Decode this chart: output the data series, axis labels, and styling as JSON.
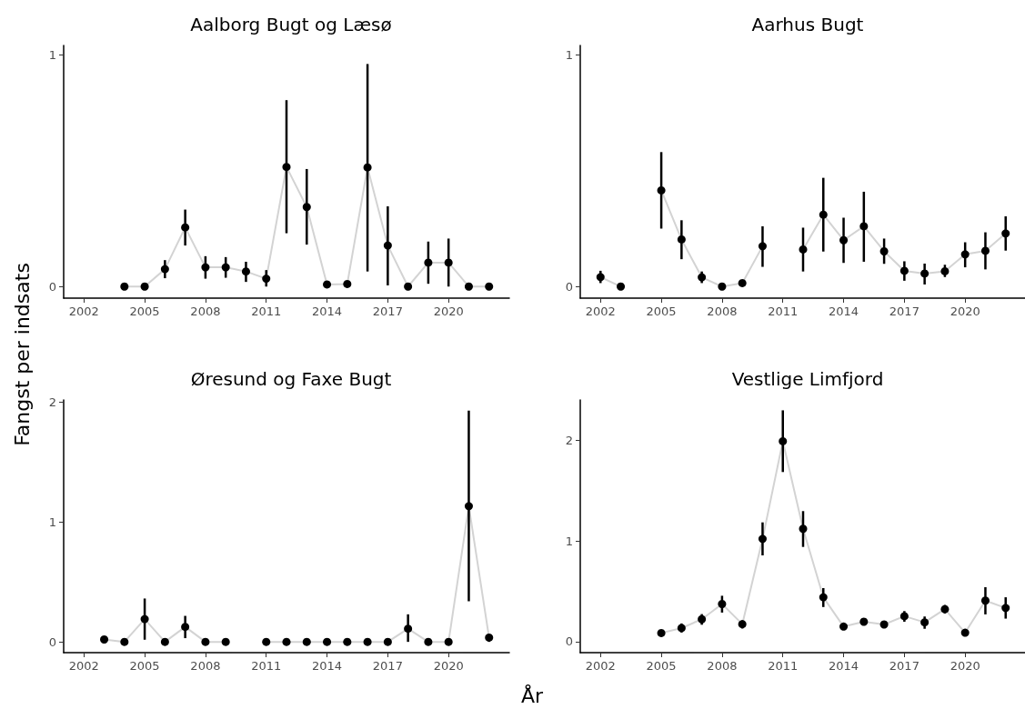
{
  "chart_data": [
    {
      "type": "line",
      "title": "Aalborg Bugt og Læsø",
      "ylabel": "Fangst per indsats",
      "xlim": [
        2001,
        2023
      ],
      "xticks": [
        2002,
        2005,
        2008,
        2011,
        2014,
        2017,
        2020
      ],
      "ylim": [
        -0.05,
        1.04
      ],
      "yticks": [
        0,
        1
      ],
      "series": [
        {
          "type": "line",
          "color": "#d3d3d3",
          "marker": "none",
          "x": [
            2004,
            2005,
            2006,
            2007,
            2008,
            2009,
            2010,
            2011,
            2012,
            2013,
            2014,
            2015,
            2016,
            2017,
            2018,
            2019,
            2020,
            2021,
            2022
          ],
          "values": [
            0,
            0,
            0.075,
            0.255,
            0.083,
            0.083,
            0.065,
            0.034,
            0.516,
            0.343,
            0.009,
            0.011,
            0.514,
            0.177,
            0,
            0.103,
            0.103,
            0,
            0
          ]
        },
        {
          "type": "scatter",
          "color": "#000000",
          "marker": "circle",
          "x": [
            2004,
            2005,
            2006,
            2007,
            2008,
            2009,
            2010,
            2011,
            2012,
            2013,
            2014,
            2015,
            2016,
            2017,
            2018,
            2019,
            2020,
            2021,
            2022
          ],
          "values": [
            0,
            0,
            0.075,
            0.255,
            0.083,
            0.083,
            0.065,
            0.034,
            0.516,
            0.343,
            0.009,
            0.011,
            0.514,
            0.177,
            0,
            0.103,
            0.103,
            0,
            0
          ],
          "errors": [
            null,
            null,
            [
              0.036,
              0.114
            ],
            [
              0.177,
              0.332
            ],
            [
              0.034,
              0.131
            ],
            [
              0.038,
              0.127
            ],
            [
              0.02,
              0.107
            ],
            [
              0,
              0.071
            ],
            [
              0.23,
              0.804
            ],
            [
              0.181,
              0.507
            ],
            null,
            null,
            [
              0.065,
              0.96
            ],
            [
              0.005,
              0.346
            ],
            null,
            [
              0.012,
              0.194
            ],
            [
              0,
              0.207
            ],
            null,
            null
          ]
        }
      ]
    },
    {
      "type": "line",
      "title": "Aarhus Bugt",
      "xlim": [
        2001,
        2023
      ],
      "xticks": [
        2002,
        2005,
        2008,
        2011,
        2014,
        2017,
        2020
      ],
      "ylim": [
        -0.05,
        1.04
      ],
      "yticks": [
        0,
        1
      ],
      "series": [
        {
          "type": "line",
          "color": "#d3d3d3",
          "marker": "none",
          "x": [
            2002,
            2003,
            2004,
            2005,
            2006,
            2007,
            2008,
            2009,
            2010,
            2011,
            2012,
            2013,
            2014,
            2015,
            2016,
            2017,
            2018,
            2019,
            2020,
            2021,
            2022
          ],
          "values": [
            0.041,
            0,
            null,
            0.415,
            0.203,
            0.04,
            0,
            0.015,
            0.174,
            null,
            0.16,
            0.31,
            0.2,
            0.26,
            0.152,
            0.068,
            0.056,
            0.066,
            0.139,
            0.154,
            0.229
          ]
        },
        {
          "type": "scatter",
          "color": "#000000",
          "marker": "circle",
          "x": [
            2002,
            2003,
            2005,
            2006,
            2007,
            2008,
            2009,
            2010,
            2012,
            2013,
            2014,
            2015,
            2016,
            2017,
            2018,
            2019,
            2020,
            2021,
            2022
          ],
          "values": [
            0.041,
            0,
            0.415,
            0.203,
            0.04,
            0,
            0.015,
            0.174,
            0.16,
            0.31,
            0.2,
            0.26,
            0.152,
            0.068,
            0.056,
            0.066,
            0.139,
            0.154,
            0.229
          ],
          "errors": [
            [
              0.015,
              0.068
            ],
            null,
            [
              0.25,
              0.58
            ],
            [
              0.118,
              0.286
            ],
            [
              0.015,
              0.065
            ],
            null,
            [
              0.001,
              0.028
            ],
            [
              0.085,
              0.26
            ],
            [
              0.065,
              0.254
            ],
            [
              0.151,
              0.469
            ],
            [
              0.102,
              0.297
            ],
            [
              0.107,
              0.409
            ],
            [
              0.098,
              0.207
            ],
            [
              0.025,
              0.109
            ],
            [
              0.009,
              0.099
            ],
            [
              0.041,
              0.094
            ],
            [
              0.083,
              0.191
            ],
            [
              0.074,
              0.234
            ],
            [
              0.155,
              0.303
            ]
          ]
        }
      ]
    },
    {
      "type": "line",
      "title": "Øresund og Faxe Bugt",
      "xlabel": "År",
      "xlim": [
        2001,
        2023
      ],
      "xticks": [
        2002,
        2005,
        2008,
        2011,
        2014,
        2017,
        2020
      ],
      "ylim": [
        -0.09,
        2.02
      ],
      "yticks": [
        0,
        1,
        2
      ],
      "series": [
        {
          "type": "line",
          "color": "#d3d3d3",
          "marker": "none",
          "x": [
            2003,
            2004,
            2005,
            2006,
            2007,
            2008,
            2009,
            2010,
            2011,
            2012,
            2013,
            2014,
            2015,
            2016,
            2017,
            2018,
            2019,
            2020,
            2021,
            2022
          ],
          "values": [
            0.02,
            0,
            0.19,
            0,
            0.125,
            0,
            0,
            null,
            0,
            0,
            0,
            0,
            0,
            0,
            0,
            0.11,
            0,
            0,
            1.133,
            0.036
          ]
        },
        {
          "type": "scatter",
          "color": "#000000",
          "marker": "circle",
          "x": [
            2003,
            2004,
            2005,
            2006,
            2007,
            2008,
            2009,
            2011,
            2012,
            2013,
            2014,
            2015,
            2016,
            2017,
            2018,
            2019,
            2020,
            2021,
            2022
          ],
          "values": [
            0.02,
            0,
            0.19,
            0,
            0.125,
            0,
            0,
            0,
            0,
            0,
            0,
            0,
            0,
            0,
            0.11,
            0,
            0,
            1.133,
            0.036
          ],
          "errors": [
            null,
            null,
            [
              0.018,
              0.362
            ],
            null,
            [
              0.031,
              0.217
            ],
            null,
            null,
            null,
            null,
            null,
            null,
            null,
            null,
            null,
            [
              0,
              0.23
            ],
            null,
            null,
            [
              0.339,
              1.931
            ],
            [
              0,
              0.064
            ]
          ]
        }
      ]
    },
    {
      "type": "line",
      "title": "Vestlige Limfjord",
      "xlim": [
        2001,
        2023
      ],
      "xticks": [
        2002,
        2005,
        2008,
        2011,
        2014,
        2017,
        2020
      ],
      "ylim": [
        -0.11,
        2.4
      ],
      "yticks": [
        0,
        1,
        2
      ],
      "series": [
        {
          "type": "line",
          "color": "#d3d3d3",
          "marker": "none",
          "x": [
            2005,
            2006,
            2007,
            2008,
            2009,
            2010,
            2011,
            2012,
            2013,
            2014,
            2015,
            2016,
            2017,
            2018,
            2019,
            2020,
            2021,
            2022
          ],
          "values": [
            0.085,
            0.134,
            0.222,
            0.373,
            0.173,
            1.02,
            1.99,
            1.12,
            0.44,
            0.149,
            0.197,
            0.17,
            0.252,
            0.191,
            0.322,
            0.088,
            0.407,
            0.334
          ]
        },
        {
          "type": "scatter",
          "color": "#000000",
          "marker": "circle",
          "x": [
            2005,
            2006,
            2007,
            2008,
            2009,
            2010,
            2011,
            2012,
            2013,
            2014,
            2015,
            2016,
            2017,
            2018,
            2019,
            2020,
            2021,
            2022
          ],
          "values": [
            0.085,
            0.134,
            0.222,
            0.373,
            0.173,
            1.02,
            1.99,
            1.12,
            0.44,
            0.149,
            0.197,
            0.17,
            0.252,
            0.191,
            0.322,
            0.088,
            0.407,
            0.334
          ],
          "errors": [
            null,
            [
              0.09,
              0.18
            ],
            [
              0.167,
              0.273
            ],
            [
              0.288,
              0.455
            ],
            [
              0.13,
              0.212
            ],
            [
              0.856,
              1.184
            ],
            [
              1.684,
              2.297
            ],
            [
              0.94,
              1.296
            ],
            [
              0.343,
              0.531
            ],
            null,
            null,
            null,
            [
              0.197,
              0.303
            ],
            [
              0.127,
              0.249
            ],
            [
              0.279,
              0.364
            ],
            null,
            [
              0.27,
              0.54
            ],
            [
              0.228,
              0.44
            ]
          ]
        }
      ]
    }
  ]
}
